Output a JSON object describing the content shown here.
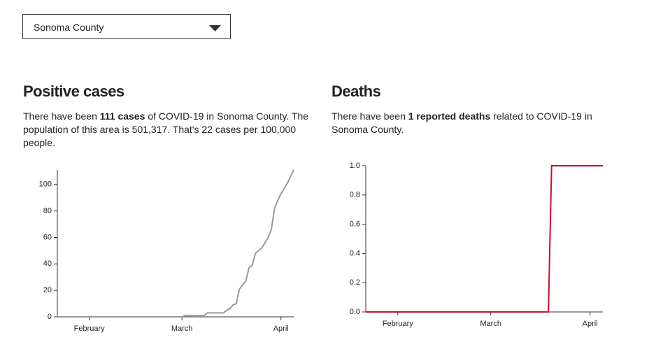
{
  "selector": {
    "value": "Sonoma County"
  },
  "cases_panel": {
    "title": "Positive cases",
    "text": [
      "There have been ",
      "111 cases",
      " of COVID-19 in Sonoma County. The population of this area is 501,317. That's 22 cases per 100,000 people."
    ]
  },
  "deaths_panel": {
    "title": "Deaths",
    "text": [
      "There have been ",
      "1 reported deaths",
      " related to COVID-19 in Sonoma County."
    ]
  },
  "chart_data": [
    {
      "type": "line",
      "color": "#999999",
      "x": [
        0,
        39,
        40,
        46,
        47,
        52,
        53,
        54,
        55,
        56,
        57,
        58,
        59,
        60,
        61,
        62,
        63,
        64,
        65,
        66,
        67,
        68,
        69,
        70,
        71,
        72,
        73,
        74
      ],
      "values": [
        0,
        0,
        1,
        1,
        3,
        3,
        5,
        6,
        9,
        10,
        21,
        24,
        27,
        37,
        39,
        48,
        50,
        52,
        56,
        60,
        66,
        82,
        88,
        93,
        97,
        101,
        106,
        111
      ],
      "xlim": [
        0,
        74
      ],
      "xticks": [
        {
          "value": 10,
          "label": "February"
        },
        {
          "value": 39,
          "label": "March"
        },
        {
          "value": 70,
          "label": "April"
        }
      ],
      "ylim": [
        0,
        111
      ],
      "yticks": [
        0,
        20,
        40,
        60,
        80,
        100
      ]
    },
    {
      "type": "line",
      "color": "#c8102e",
      "x": [
        0,
        57,
        58,
        74
      ],
      "values": [
        0,
        0,
        1,
        1
      ],
      "xlim": [
        0,
        74
      ],
      "xticks": [
        {
          "value": 10,
          "label": "February"
        },
        {
          "value": 39,
          "label": "March"
        },
        {
          "value": 70,
          "label": "April"
        }
      ],
      "ylim": [
        0,
        1
      ],
      "yticks": [
        {
          "value": 0,
          "label": "0.0"
        },
        {
          "value": 0.2,
          "label": "0.2"
        },
        {
          "value": 0.4,
          "label": "0.4"
        },
        {
          "value": 0.6,
          "label": "0.6"
        },
        {
          "value": 0.8,
          "label": "0.8"
        },
        {
          "value": 1,
          "label": "1.0"
        }
      ]
    }
  ]
}
